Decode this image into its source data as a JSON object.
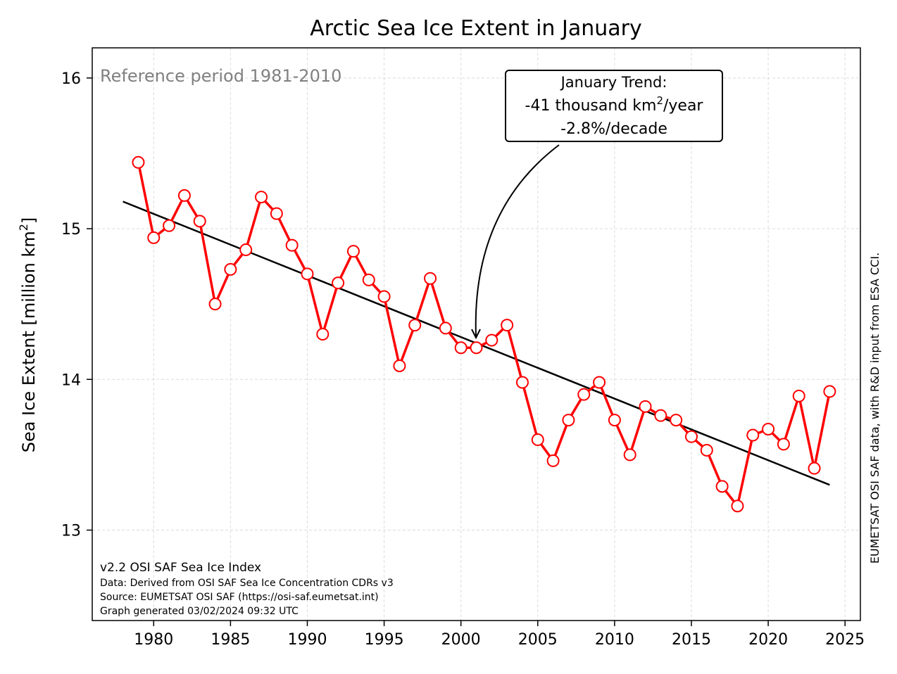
{
  "chart_data": {
    "type": "line",
    "title": "Arctic Sea Ice Extent in January",
    "ylabel_main": "Sea Ice Extent [million km",
    "ylabel_sup": "2",
    "ylabel_end": "]",
    "xlim": [
      1976,
      2026
    ],
    "ylim": [
      12.4,
      16.2
    ],
    "x_ticks": [
      1980,
      1985,
      1990,
      1995,
      2000,
      2005,
      2010,
      2015,
      2020,
      2025
    ],
    "y_ticks": [
      13,
      14,
      15,
      16
    ],
    "grid": true,
    "reference_label": "Reference period 1981-2010",
    "series": [
      {
        "color": "#ff0000",
        "marker_face": "#ffffff",
        "x": [
          1979,
          1980,
          1981,
          1982,
          1983,
          1984,
          1985,
          1986,
          1987,
          1988,
          1989,
          1990,
          1991,
          1992,
          1993,
          1994,
          1995,
          1996,
          1997,
          1998,
          1999,
          2000,
          2001,
          2002,
          2003,
          2004,
          2005,
          2006,
          2007,
          2008,
          2009,
          2010,
          2011,
          2012,
          2013,
          2014,
          2015,
          2016,
          2017,
          2018,
          2019,
          2020,
          2021,
          2022,
          2023,
          2024
        ],
        "y": [
          15.44,
          14.94,
          15.02,
          15.22,
          15.05,
          14.5,
          14.73,
          14.86,
          15.21,
          15.1,
          14.89,
          14.7,
          14.3,
          14.64,
          14.85,
          14.66,
          14.55,
          14.09,
          14.36,
          14.67,
          14.34,
          14.21,
          14.21,
          14.26,
          14.36,
          13.98,
          13.6,
          13.46,
          13.73,
          13.9,
          13.98,
          13.73,
          13.5,
          13.82,
          13.76,
          13.73,
          13.62,
          13.53,
          13.29,
          13.16,
          13.63,
          13.67,
          13.57,
          13.89,
          13.41,
          13.92
        ]
      }
    ],
    "trend": {
      "color": "#000000",
      "x": [
        1978,
        2024
      ],
      "y": [
        15.18,
        13.3
      ]
    },
    "annotation": {
      "line1": "January Trend:",
      "line2_main": "-41 thousand km",
      "line2_sup": "2",
      "line2_end": "/year",
      "line3": "-2.8%/decade",
      "arrow_target": [
        2001,
        14.25
      ]
    },
    "footnote": {
      "line1": "v2.2 OSI SAF Sea Ice Index",
      "line2": "Data: Derived from OSI SAF Sea Ice Concentration CDRs v3",
      "line3": "Source: EUMETSAT OSI SAF (https://osi-saf.eumetsat.int)",
      "line4": "Graph generated 03/02/2024 09:32 UTC"
    },
    "side_credit": "EUMETSAT OSI SAF data, with R&D input from ESA CCI."
  }
}
